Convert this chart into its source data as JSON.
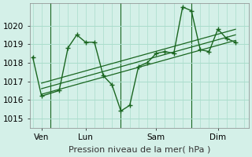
{
  "background_color": "#d4f0e8",
  "grid_color": "#aaddcc",
  "line_color": "#1a6620",
  "ylim": [
    1014.5,
    1021.2
  ],
  "yticks": [
    1015,
    1016,
    1017,
    1018,
    1019,
    1020
  ],
  "xlabel": "Pression niveau de la mer( hPa )",
  "xlim": [
    -0.3,
    24.5
  ],
  "main_x": [
    0,
    1,
    3,
    4,
    5,
    6,
    7,
    8,
    9,
    10,
    11,
    12,
    13,
    14,
    15,
    16,
    17,
    18,
    19,
    20,
    21,
    22,
    23
  ],
  "main_y": [
    1018.3,
    1016.2,
    1016.5,
    1018.8,
    1019.5,
    1019.1,
    1019.1,
    1017.3,
    1016.8,
    1015.4,
    1015.7,
    1017.8,
    1018.0,
    1018.5,
    1018.6,
    1018.5,
    1021.0,
    1020.8,
    1018.7,
    1018.6,
    1019.8,
    1019.3,
    1019.1
  ],
  "trends": [
    {
      "x": [
        1,
        23
      ],
      "y": [
        1016.3,
        1019.2
      ]
    },
    {
      "x": [
        1,
        23
      ],
      "y": [
        1016.6,
        1019.5
      ]
    },
    {
      "x": [
        1,
        23
      ],
      "y": [
        1016.9,
        1019.8
      ]
    }
  ],
  "vlines": [
    2,
    10,
    18
  ],
  "day_positions": [
    1,
    6,
    14,
    21
  ],
  "day_labels": [
    "Ven",
    "Lun",
    "Sam",
    "Dim"
  ],
  "tick_label_fontsize": 7.5,
  "xlabel_fontsize": 8
}
